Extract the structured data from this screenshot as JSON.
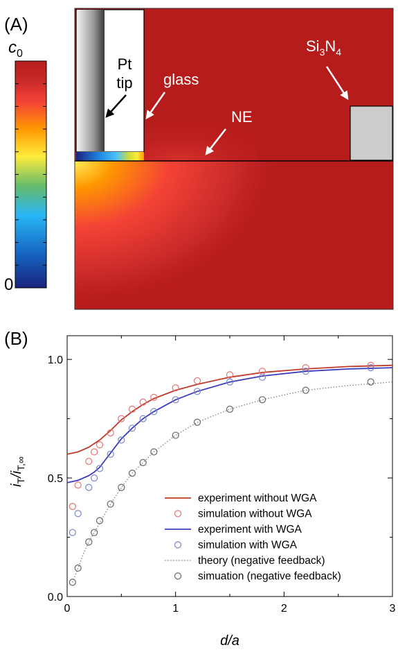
{
  "panel_a": {
    "label": "(A)",
    "colorbar": {
      "max_label": "c",
      "max_label_sub": "0",
      "min_label": "0",
      "colors": [
        "#1a237e",
        "#1565c0",
        "#29b6f6",
        "#66bb6a",
        "#ffeb3b",
        "#ff9800",
        "#f44336",
        "#c62828",
        "#b71c1c"
      ]
    },
    "labels": {
      "pt_line1": "Pt",
      "pt_line2": "tip",
      "glass": "glass",
      "si_part1": "Si",
      "si_sub1": "3",
      "si_part2": "N",
      "si_sub2": "4",
      "ne": "NE"
    },
    "colors": {
      "background": "#b71c1c",
      "si3n4_block": "#cccccc",
      "glass": "#ffffff"
    }
  },
  "chart_data": {
    "panel_label": "(B)",
    "type": "line+scatter",
    "xlabel": "d/a",
    "ylabel_main": "i",
    "ylabel_sub": "T",
    "ylabel_div": "/i",
    "ylabel_sub2": "T,∞",
    "xlim": [
      0,
      3
    ],
    "ylim": [
      0,
      1.1
    ],
    "x_ticks": [
      "0",
      "1",
      "2",
      "3"
    ],
    "y_ticks": [
      "0.0",
      "0.5",
      "1.0"
    ],
    "x_tick_values": [
      0,
      1,
      2,
      3
    ],
    "y_tick_values": [
      0.0,
      0.5,
      1.0
    ],
    "grid": false,
    "legend_position": "bottom-right",
    "series": [
      {
        "name": "experiment without WGA",
        "kind": "line",
        "color": "#c0392b",
        "dash": "solid",
        "x": [
          0,
          0.1,
          0.2,
          0.25,
          0.3,
          0.35,
          0.4,
          0.5,
          0.6,
          0.7,
          0.8,
          1.0,
          1.2,
          1.5,
          1.8,
          2.2,
          2.6,
          3.0
        ],
        "y": [
          0.6,
          0.61,
          0.63,
          0.645,
          0.66,
          0.68,
          0.7,
          0.745,
          0.78,
          0.81,
          0.835,
          0.87,
          0.895,
          0.925,
          0.945,
          0.96,
          0.97,
          0.975
        ]
      },
      {
        "name": "simulation without WGA",
        "kind": "scatter",
        "color": "#e57373",
        "x": [
          0.05,
          0.1,
          0.2,
          0.25,
          0.3,
          0.4,
          0.5,
          0.6,
          0.7,
          0.8,
          1.0,
          1.2,
          1.5,
          1.8,
          2.2,
          2.8
        ],
        "y": [
          0.38,
          0.47,
          0.57,
          0.61,
          0.64,
          0.69,
          0.75,
          0.79,
          0.82,
          0.84,
          0.88,
          0.91,
          0.935,
          0.95,
          0.965,
          0.975
        ]
      },
      {
        "name": "experiment with WGA",
        "kind": "line",
        "color": "#3b3bbf",
        "dash": "solid",
        "x": [
          0,
          0.1,
          0.2,
          0.25,
          0.3,
          0.35,
          0.4,
          0.5,
          0.6,
          0.7,
          0.8,
          1.0,
          1.2,
          1.5,
          1.8,
          2.2,
          2.6,
          3.0
        ],
        "y": [
          0.48,
          0.49,
          0.51,
          0.525,
          0.545,
          0.575,
          0.605,
          0.665,
          0.71,
          0.75,
          0.78,
          0.83,
          0.865,
          0.905,
          0.93,
          0.95,
          0.96,
          0.965
        ]
      },
      {
        "name": "simulation with WGA",
        "kind": "scatter",
        "color": "#7986cb",
        "x": [
          0.05,
          0.1,
          0.2,
          0.25,
          0.3,
          0.4,
          0.5,
          0.6,
          0.7,
          0.8,
          1.0,
          1.2,
          1.5,
          1.8,
          2.2,
          2.8
        ],
        "y": [
          0.27,
          0.35,
          0.46,
          0.5,
          0.54,
          0.6,
          0.66,
          0.71,
          0.75,
          0.78,
          0.83,
          0.865,
          0.905,
          0.925,
          0.95,
          0.965
        ]
      },
      {
        "name": "theory (negative feedback)",
        "kind": "line",
        "color": "#888888",
        "dash": "dotted",
        "x": [
          0.05,
          0.1,
          0.15,
          0.2,
          0.25,
          0.3,
          0.4,
          0.5,
          0.6,
          0.7,
          0.8,
          1.0,
          1.2,
          1.5,
          1.8,
          2.2,
          2.6,
          3.0
        ],
        "y": [
          0.06,
          0.12,
          0.18,
          0.23,
          0.27,
          0.31,
          0.39,
          0.46,
          0.52,
          0.565,
          0.61,
          0.68,
          0.735,
          0.79,
          0.83,
          0.87,
          0.89,
          0.905
        ]
      },
      {
        "name": "simuation (negative feedback)",
        "kind": "scatter",
        "color": "#666666",
        "x": [
          0.05,
          0.1,
          0.2,
          0.25,
          0.3,
          0.4,
          0.5,
          0.6,
          0.7,
          0.8,
          1.0,
          1.2,
          1.5,
          1.8,
          2.2,
          2.8
        ],
        "y": [
          0.06,
          0.12,
          0.23,
          0.27,
          0.32,
          0.39,
          0.46,
          0.52,
          0.565,
          0.61,
          0.68,
          0.735,
          0.79,
          0.83,
          0.87,
          0.905
        ]
      }
    ]
  }
}
